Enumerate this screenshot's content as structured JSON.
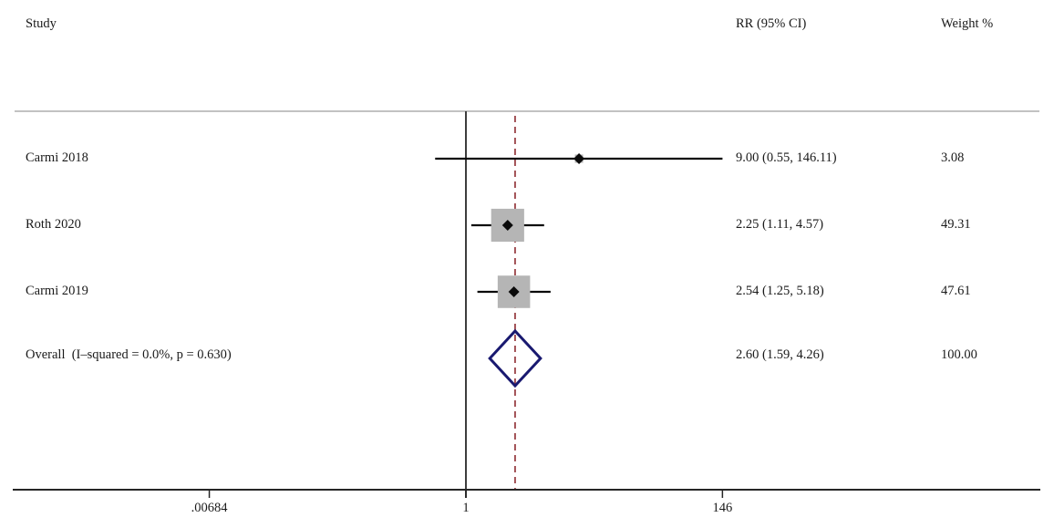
{
  "header": {
    "study_col": "Study",
    "rr_col": "RR (95% CI)",
    "weight_col": "Weight %"
  },
  "chart_data": {
    "type": "forest",
    "x_scale": "log",
    "xlabel": "",
    "grid": false,
    "x_ticks": [
      {
        "value": 0.00684,
        "label": ".00684"
      },
      {
        "value": 1,
        "label": "1"
      },
      {
        "value": 146,
        "label": "146"
      }
    ],
    "null_value": 1,
    "pooled_value": 2.6,
    "rows": [
      {
        "label": "Carmi 2018",
        "rr": 9.0,
        "ci_low": 0.55,
        "ci_high": 146.11,
        "rr_text": "9.00 (0.55, 146.11)",
        "weight": 3.08,
        "weight_text": "3.08"
      },
      {
        "label": "Roth 2020",
        "rr": 2.25,
        "ci_low": 1.11,
        "ci_high": 4.57,
        "rr_text": "2.25 (1.11, 4.57)",
        "weight": 49.31,
        "weight_text": "49.31"
      },
      {
        "label": "Carmi 2019",
        "rr": 2.54,
        "ci_low": 1.25,
        "ci_high": 5.18,
        "rr_text": "2.54 (1.25, 5.18)",
        "weight": 47.61,
        "weight_text": "47.61"
      }
    ],
    "overall": {
      "label": "Overall  (I–squared = 0.0%, p = 0.630)",
      "rr": 2.6,
      "ci_low": 1.59,
      "ci_high": 4.26,
      "rr_text": "2.60 (1.59, 4.26)",
      "weight": 100.0,
      "weight_text": "100.00"
    }
  },
  "colors": {
    "text": "#1a1a1a",
    "separator_line": "#adadad",
    "axis_line": "#262626",
    "null_line": "#3d3d3d",
    "pooled_line": "#9a4247",
    "ci_line": "#0a0a0a",
    "weight_square": "#b5b5b5",
    "point_marker": "#0a0a0a",
    "overall_diamond": "#191970"
  }
}
